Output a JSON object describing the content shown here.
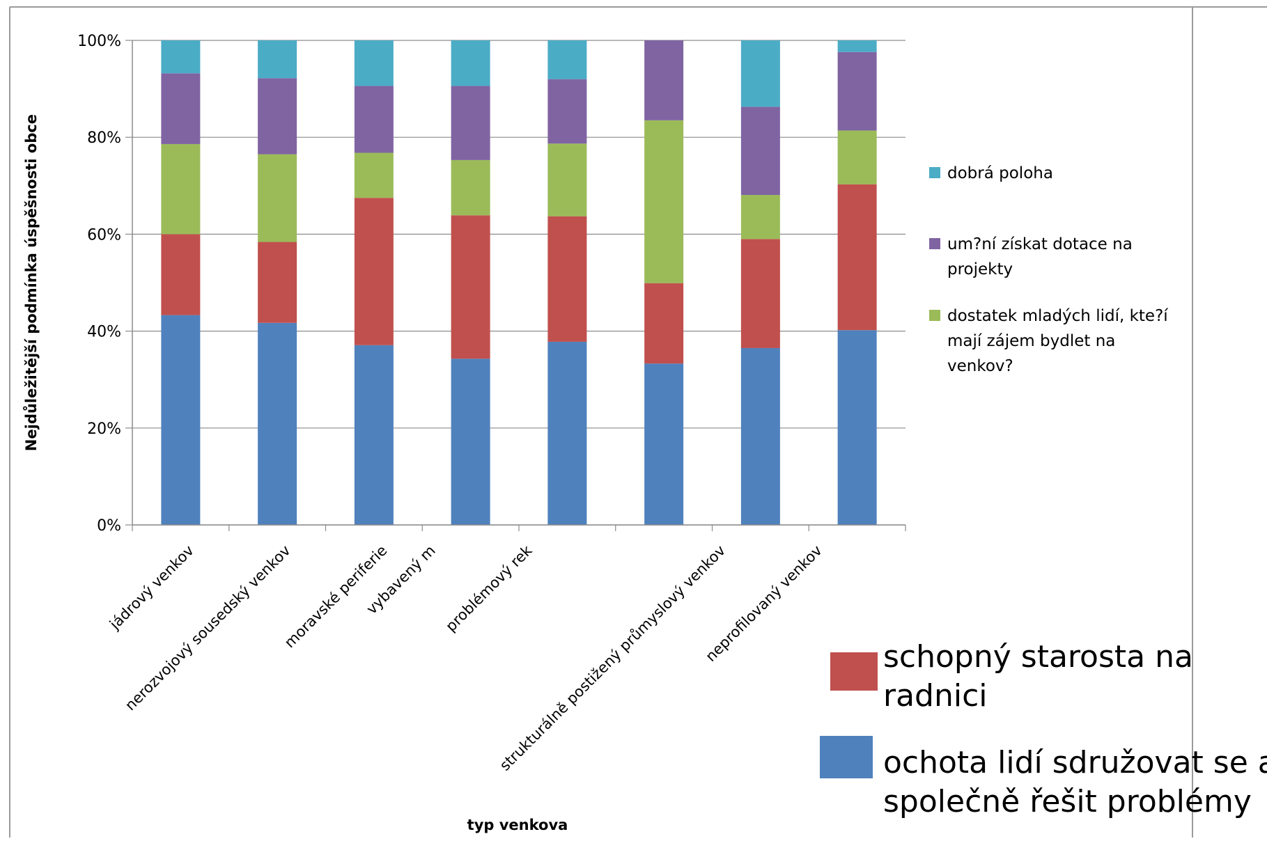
{
  "chart_data": {
    "type": "bar",
    "stacked": true,
    "normalized": true,
    "xlabel": "typ venkova",
    "ylabel": "Nejdůležitější  podmínka úspěšnosti obce",
    "ylim": [
      0,
      100
    ],
    "y_ticks": [
      "0%",
      "20%",
      "40%",
      "60%",
      "80%",
      "100%"
    ],
    "grid": true,
    "legend_position": "right",
    "categories": [
      "jádrový venkov",
      "nerozvojový sousedský venkov",
      "moravské periferie",
      "vybavený m",
      "problémový rek",
      "strukturálně postižený průmyslový venkov",
      "neprofilovaný venkov",
      ""
    ],
    "category_label_positions": [
      0,
      1,
      2,
      2.5,
      3.5,
      5.5,
      6.5
    ],
    "series": [
      {
        "name": "ochota lidí sdružovat se a společně řešit problémy",
        "color": "#4f81bd",
        "values": [
          43.3,
          41.7,
          37.1,
          34.3,
          37.8,
          33.3,
          36.5,
          40.2
        ]
      },
      {
        "name": "schopný starosta na radnici",
        "color": "#c0504d",
        "values": [
          16.7,
          16.7,
          30.4,
          29.6,
          25.9,
          16.6,
          22.5,
          30.1
        ]
      },
      {
        "name": "dostatek mladých lidí, kte?í mají zájem bydlet na venkov?",
        "color": "#9bbb59",
        "values": [
          18.6,
          18.1,
          9.3,
          11.4,
          15.0,
          33.6,
          9.1,
          11.1
        ]
      },
      {
        "name": "um?ní získat dotace na projekty",
        "color": "#8064a2",
        "values": [
          14.6,
          15.7,
          13.8,
          15.3,
          13.3,
          16.5,
          18.2,
          16.2
        ]
      },
      {
        "name": "dobrá poloha",
        "color": "#4bacc6",
        "values": [
          6.8,
          7.8,
          9.4,
          9.4,
          8.0,
          0.0,
          13.7,
          2.4
        ]
      }
    ],
    "legend_small": [
      {
        "lines": [
          "dobrá poloha"
        ],
        "color": "#4bacc6"
      },
      {
        "lines": [
          "um?ní získat dotace na",
          "projekty"
        ],
        "color": "#8064a2"
      },
      {
        "lines": [
          "dostatek mladých lidí, kte?í",
          "mají zájem bydlet na",
          "venkov?"
        ],
        "color": "#9bbb59"
      }
    ],
    "legend_large": [
      {
        "lines": [
          "schopný starosta na",
          " radnici"
        ],
        "color": "#c0504d"
      },
      {
        "lines": [
          "ochota lidí sdružovat se a",
          "společně řešit problémy"
        ],
        "color": "#4f81bd"
      }
    ]
  }
}
